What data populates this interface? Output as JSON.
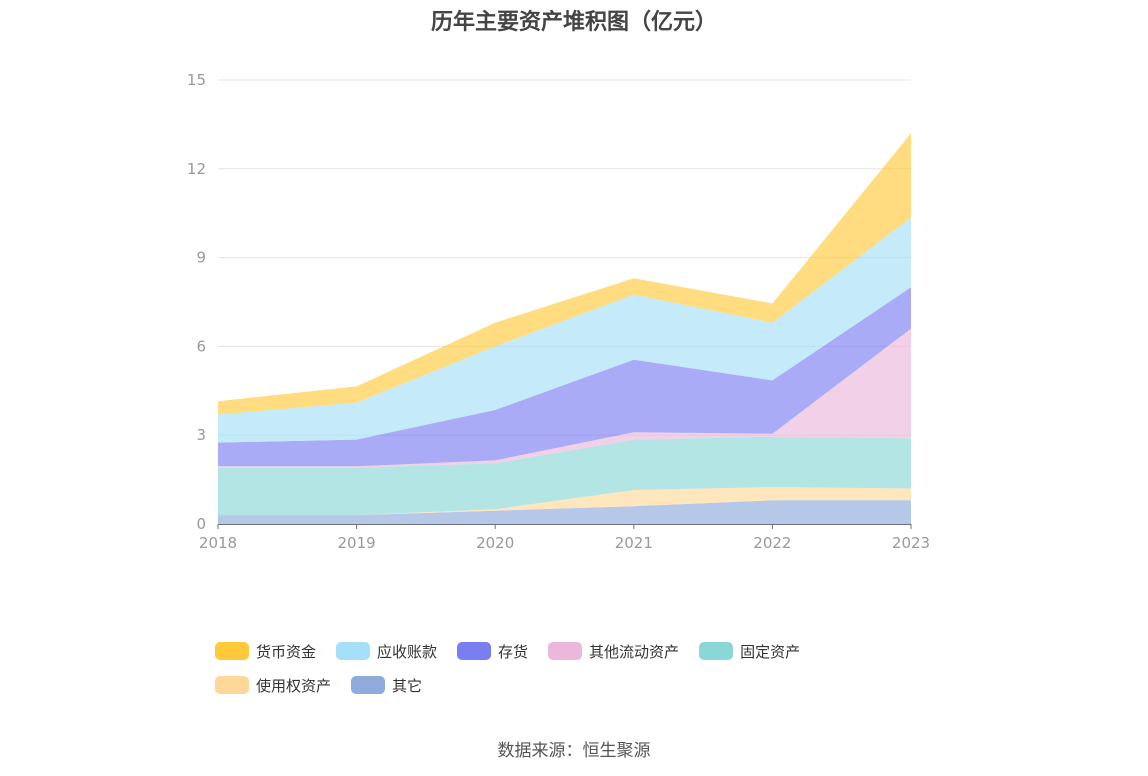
{
  "chart_data": {
    "type": "area",
    "stacked": true,
    "title": "历年主要资产堆积图（亿元）",
    "categories": [
      "2018",
      "2019",
      "2020",
      "2021",
      "2022",
      "2023"
    ],
    "ylim": [
      0,
      15
    ],
    "yticks": [
      0,
      3,
      6,
      9,
      12,
      15
    ],
    "series": [
      {
        "name": "其它",
        "color": "#8fabdb",
        "values": [
          0.3,
          0.3,
          0.45,
          0.6,
          0.8,
          0.8
        ]
      },
      {
        "name": "使用权资产",
        "color": "#ffd899",
        "values": [
          0.0,
          0.0,
          0.05,
          0.55,
          0.45,
          0.4
        ]
      },
      {
        "name": "固定资产",
        "color": "#8ad7d7",
        "values": [
          1.6,
          1.6,
          1.55,
          1.7,
          1.7,
          1.7
        ]
      },
      {
        "name": "其他流动资产",
        "color": "#ebb8dc",
        "values": [
          0.05,
          0.05,
          0.1,
          0.25,
          0.1,
          3.7
        ]
      },
      {
        "name": "存货",
        "color": "#7b7ef1",
        "values": [
          0.8,
          0.9,
          1.7,
          2.45,
          1.8,
          1.4
        ]
      },
      {
        "name": "应收账款",
        "color": "#a6e0f8",
        "values": [
          0.95,
          1.25,
          2.15,
          2.2,
          1.95,
          2.35
        ]
      },
      {
        "name": "货币资金",
        "color": "#ffc93c",
        "values": [
          0.45,
          0.55,
          0.8,
          0.55,
          0.65,
          2.85
        ]
      }
    ]
  },
  "legend_order": [
    "货币资金",
    "应收账款",
    "存货",
    "其他流动资产",
    "固定资产",
    "使用权资产",
    "其它"
  ],
  "source_text": "数据来源：恒生聚源"
}
